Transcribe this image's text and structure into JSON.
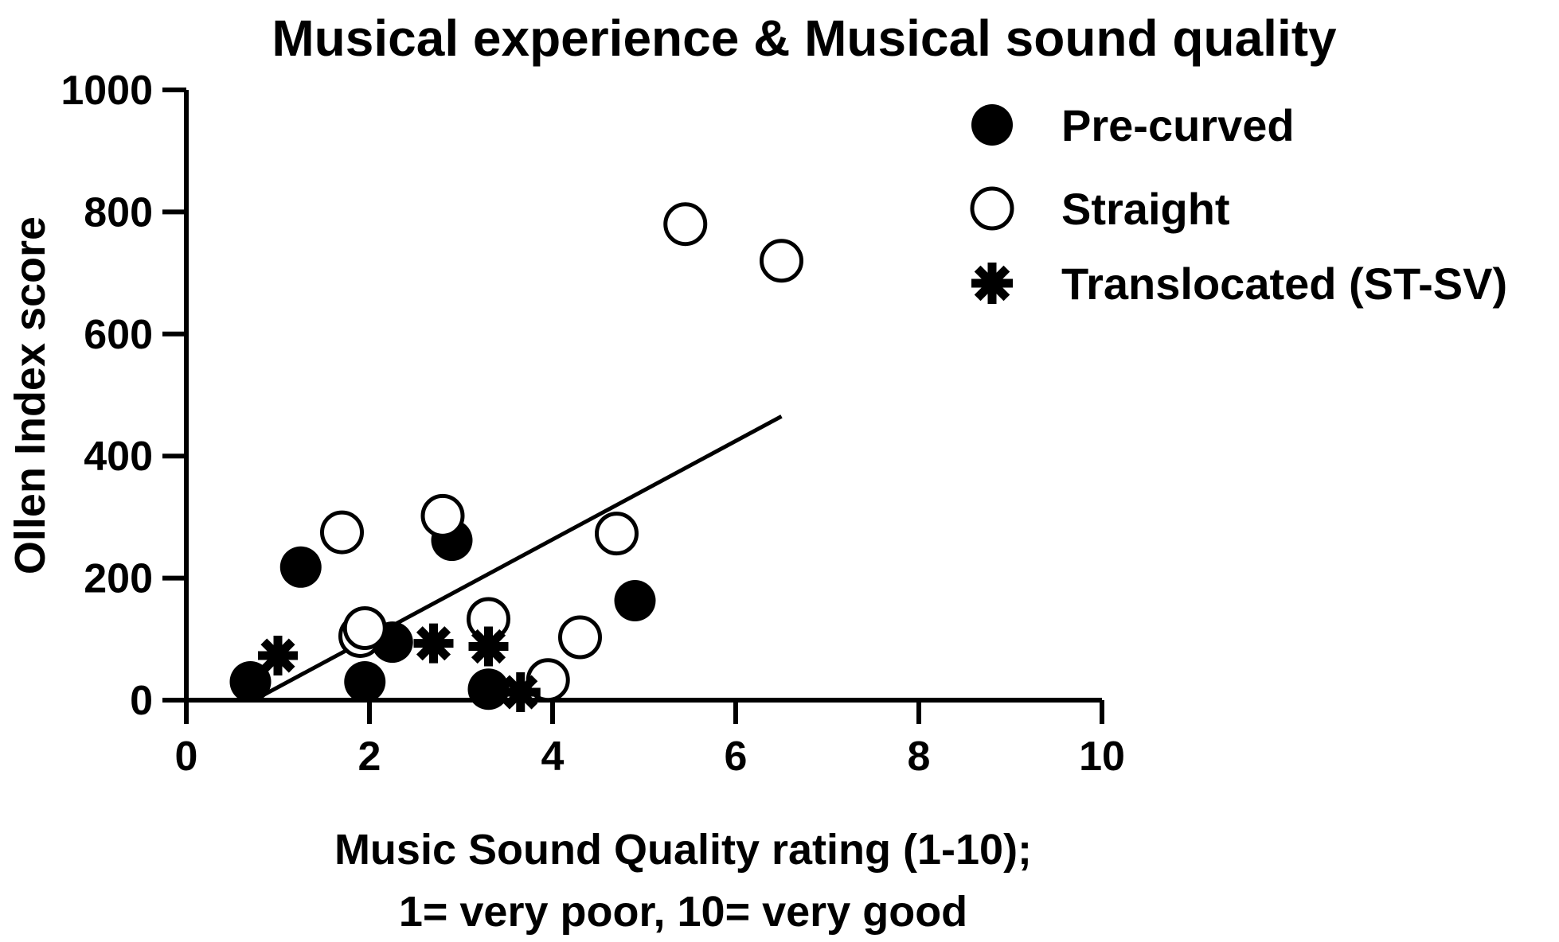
{
  "chart_data": {
    "type": "scatter",
    "title": "Musical experience & Musical sound quality",
    "xlabel_lines": [
      "Music Sound Quality rating (1-10);",
      "1= very poor, 10= very good"
    ],
    "ylabel": "Ollen Index score",
    "xlim": [
      0,
      10
    ],
    "ylim": [
      0,
      1000
    ],
    "xticks": [
      0,
      2,
      4,
      6,
      8,
      10
    ],
    "yticks": [
      0,
      200,
      400,
      600,
      800,
      1000
    ],
    "legend_position": "top-right",
    "series": [
      {
        "name": "Pre-curved",
        "marker": "filled-circle",
        "color": "#000000",
        "points": [
          {
            "x": 0.7,
            "y": 30
          },
          {
            "x": 1.25,
            "y": 218
          },
          {
            "x": 1.95,
            "y": 30
          },
          {
            "x": 2.25,
            "y": 95
          },
          {
            "x": 2.9,
            "y": 262
          },
          {
            "x": 3.3,
            "y": 18
          },
          {
            "x": 4.9,
            "y": 163
          }
        ]
      },
      {
        "name": "Straight",
        "marker": "open-circle",
        "color": "#000000",
        "points": [
          {
            "x": 1.7,
            "y": 275
          },
          {
            "x": 1.9,
            "y": 105
          },
          {
            "x": 1.95,
            "y": 118
          },
          {
            "x": 2.8,
            "y": 302
          },
          {
            "x": 3.3,
            "y": 133
          },
          {
            "x": 3.95,
            "y": 33
          },
          {
            "x": 4.3,
            "y": 103
          },
          {
            "x": 4.7,
            "y": 273
          },
          {
            "x": 5.45,
            "y": 780
          },
          {
            "x": 6.5,
            "y": 720
          }
        ]
      },
      {
        "name": "Translocated (ST-SV)",
        "marker": "asterisk",
        "color": "#000000",
        "points": [
          {
            "x": 1.0,
            "y": 73
          },
          {
            "x": 2.7,
            "y": 93
          },
          {
            "x": 3.3,
            "y": 88
          },
          {
            "x": 3.65,
            "y": 13
          }
        ]
      }
    ],
    "regression_line": {
      "x": [
        0.8,
        6.5
      ],
      "y": [
        5,
        465
      ]
    }
  }
}
